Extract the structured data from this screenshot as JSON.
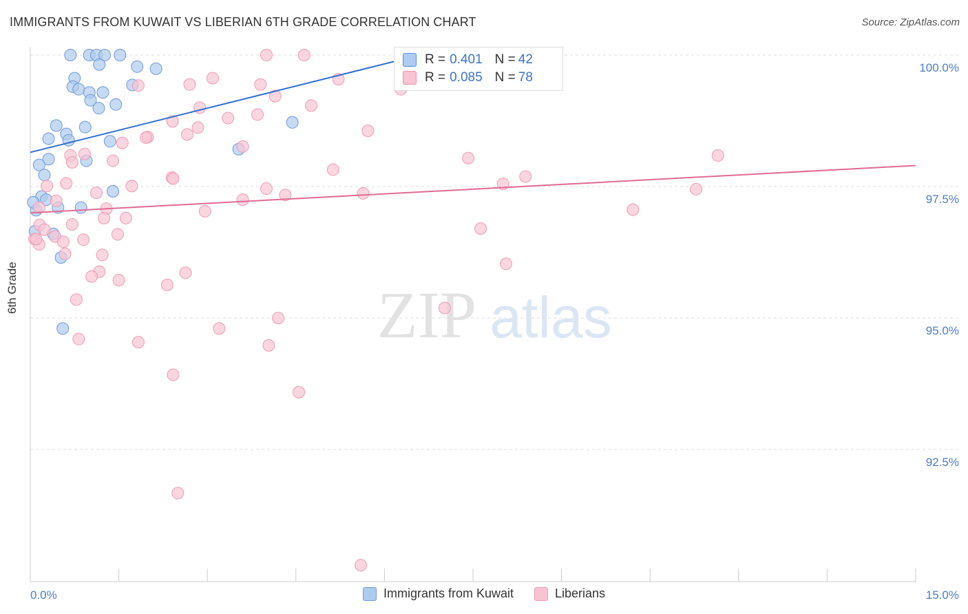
{
  "header": {
    "title": "IMMIGRANTS FROM KUWAIT VS LIBERIAN 6TH GRADE CORRELATION CHART",
    "source": "Source: ZipAtlas.com"
  },
  "watermark": {
    "zip": "ZIP",
    "atlas": "atlas"
  },
  "stats": [
    {
      "r_label": "R = ",
      "r_value": "0.401",
      "n_label": "N = ",
      "n_value": "42",
      "color": "#aecbf0",
      "border": "#5b8fd6"
    },
    {
      "r_label": "R = ",
      "r_value": "0.085",
      "n_label": "N = ",
      "n_value": "78",
      "color": "#f8c4d3",
      "border": "#e892ad"
    }
  ],
  "chart_data": {
    "type": "scatter",
    "title": "IMMIGRANTS FROM KUWAIT VS LIBERIAN 6TH GRADE CORRELATION CHART",
    "xlabel": "",
    "ylabel": "6th Grade",
    "xlim": [
      0,
      15
    ],
    "ylim": [
      90.2,
      100.25
    ],
    "x_tick_labels": [
      {
        "value": 0,
        "label": "0.0%"
      },
      {
        "value": 15,
        "label": "15.0%"
      }
    ],
    "y_tick_labels": [
      {
        "value": 100,
        "label": "100.0%"
      },
      {
        "value": 97.5,
        "label": "97.5%"
      },
      {
        "value": 95,
        "label": "95.0%"
      },
      {
        "value": 92.5,
        "label": "92.5%"
      }
    ],
    "grid": true,
    "legend_position": "bottom-center",
    "series": [
      {
        "name": "Immigrants from Kuwait",
        "color": "#aecbf0",
        "stroke": "#6f9ad8",
        "trend_color": "#2f6fcf",
        "trend": {
          "x": [
            0,
            6.6
          ],
          "y": [
            98.15,
            100.0
          ]
        },
        "points": [
          [
            0.68,
            100.0
          ],
          [
            1.0,
            100.0
          ],
          [
            1.12,
            100.0
          ],
          [
            1.26,
            100.0
          ],
          [
            1.52,
            100.0
          ],
          [
            1.17,
            99.82
          ],
          [
            1.81,
            99.78
          ],
          [
            2.13,
            99.74
          ],
          [
            0.75,
            99.56
          ],
          [
            0.72,
            99.4
          ],
          [
            0.82,
            99.35
          ],
          [
            1.23,
            99.29
          ],
          [
            1.0,
            99.29
          ],
          [
            1.02,
            99.14
          ],
          [
            1.73,
            99.43
          ],
          [
            1.45,
            99.06
          ],
          [
            1.16,
            98.99
          ],
          [
            4.44,
            98.72
          ],
          [
            0.44,
            98.66
          ],
          [
            0.93,
            98.63
          ],
          [
            0.61,
            98.5
          ],
          [
            0.31,
            98.41
          ],
          [
            0.65,
            98.38
          ],
          [
            1.35,
            98.36
          ],
          [
            3.53,
            98.21
          ],
          [
            0.31,
            98.02
          ],
          [
            0.95,
            97.99
          ],
          [
            0.15,
            97.91
          ],
          [
            0.24,
            97.72
          ],
          [
            1.4,
            97.41
          ],
          [
            0.19,
            97.31
          ],
          [
            0.47,
            97.1
          ],
          [
            0.1,
            97.05
          ],
          [
            0.86,
            97.1
          ],
          [
            0.27,
            97.25
          ],
          [
            0.39,
            96.6
          ],
          [
            0.52,
            96.15
          ],
          [
            0.55,
            94.8
          ],
          [
            0.05,
            97.2
          ],
          [
            0.08,
            96.65
          ],
          [
            8.2,
            100.0
          ],
          [
            6.6,
            100.0
          ]
        ]
      },
      {
        "name": "Liberians",
        "color": "#f8c4d3",
        "stroke": "#ee9bb6",
        "trend_color": "#e06a92",
        "trend": {
          "x": [
            0,
            15
          ],
          "y": [
            97.0,
            97.9
          ]
        },
        "points": [
          [
            4.0,
            100.0
          ],
          [
            4.64,
            100.0
          ],
          [
            3.09,
            99.56
          ],
          [
            3.9,
            99.44
          ],
          [
            2.7,
            99.44
          ],
          [
            5.22,
            99.54
          ],
          [
            6.28,
            99.35
          ],
          [
            1.83,
            99.42
          ],
          [
            4.15,
            99.22
          ],
          [
            4.76,
            99.04
          ],
          [
            2.87,
            99.0
          ],
          [
            3.85,
            98.87
          ],
          [
            3.35,
            98.8
          ],
          [
            2.41,
            98.74
          ],
          [
            5.72,
            98.56
          ],
          [
            2.84,
            98.62
          ],
          [
            1.99,
            98.44
          ],
          [
            2.66,
            98.49
          ],
          [
            1.96,
            98.43
          ],
          [
            1.56,
            98.33
          ],
          [
            3.6,
            98.26
          ],
          [
            0.92,
            98.12
          ],
          [
            0.68,
            98.09
          ],
          [
            7.42,
            98.04
          ],
          [
            1.4,
            97.99
          ],
          [
            11.65,
            98.09
          ],
          [
            0.71,
            97.96
          ],
          [
            5.13,
            97.82
          ],
          [
            8.39,
            97.69
          ],
          [
            2.4,
            97.67
          ],
          [
            2.42,
            97.65
          ],
          [
            0.61,
            97.56
          ],
          [
            0.28,
            97.51
          ],
          [
            1.72,
            97.51
          ],
          [
            8.01,
            97.55
          ],
          [
            4.0,
            97.46
          ],
          [
            11.28,
            97.45
          ],
          [
            1.12,
            97.38
          ],
          [
            5.64,
            97.37
          ],
          [
            4.32,
            97.34
          ],
          [
            3.6,
            97.25
          ],
          [
            0.44,
            97.23
          ],
          [
            1.29,
            97.08
          ],
          [
            2.96,
            97.03
          ],
          [
            10.21,
            97.06
          ],
          [
            1.62,
            96.9
          ],
          [
            0.71,
            96.78
          ],
          [
            0.16,
            96.77
          ],
          [
            0.24,
            96.68
          ],
          [
            7.63,
            96.7
          ],
          [
            1.48,
            96.59
          ],
          [
            0.42,
            96.55
          ],
          [
            0.9,
            96.49
          ],
          [
            0.56,
            96.45
          ],
          [
            0.07,
            96.5
          ],
          [
            0.15,
            96.4
          ],
          [
            0.59,
            96.22
          ],
          [
            1.22,
            96.2
          ],
          [
            8.06,
            96.03
          ],
          [
            1.17,
            95.88
          ],
          [
            2.63,
            95.86
          ],
          [
            1.04,
            95.79
          ],
          [
            1.5,
            95.72
          ],
          [
            2.32,
            95.63
          ],
          [
            0.78,
            95.35
          ],
          [
            7.02,
            95.19
          ],
          [
            4.2,
            95.0
          ],
          [
            3.2,
            94.8
          ],
          [
            0.82,
            94.6
          ],
          [
            1.83,
            94.54
          ],
          [
            4.04,
            94.48
          ],
          [
            2.42,
            93.92
          ],
          [
            4.55,
            93.59
          ],
          [
            2.5,
            91.67
          ],
          [
            5.6,
            90.3
          ],
          [
            0.1,
            96.5
          ],
          [
            0.15,
            97.1
          ],
          [
            1.25,
            96.9
          ]
        ]
      }
    ]
  },
  "legend": {
    "items": [
      {
        "label": "Immigrants from Kuwait",
        "color": "#aecbf0",
        "border": "#6f9ad8"
      },
      {
        "label": "Liberians",
        "color": "#f8c4d3",
        "border": "#ee9bb6"
      }
    ]
  }
}
